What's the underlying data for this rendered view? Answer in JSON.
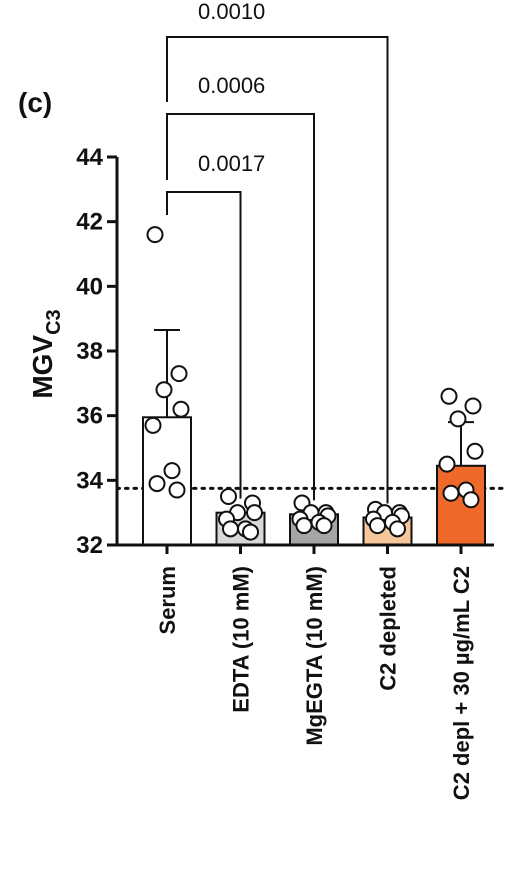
{
  "chart_data": {
    "type": "bar",
    "panel_label": "(c)",
    "ylabel": "MGV",
    "ylabel_subscript": "C3",
    "ylim": [
      32,
      44
    ],
    "yticks": [
      32,
      34,
      36,
      38,
      40,
      42,
      44
    ],
    "reference_line": 33.75,
    "categories": [
      "Serum",
      "EDTA (10 mM)",
      "MgEGTA (10 mM)",
      "C2 depleted",
      "C2 depl + 30 µg/mL C2"
    ],
    "values": [
      35.95,
      33.0,
      32.95,
      32.85,
      34.45
    ],
    "errors": [
      2.7,
      0,
      0,
      0,
      1.35
    ],
    "colors": [
      "#ffffff",
      "#d8d8d8",
      "#a6a6a6",
      "#f6c79a",
      "#ef6a2a"
    ],
    "points": [
      [
        41.6,
        37.3,
        36.8,
        36.2,
        35.7,
        34.3,
        33.9,
        33.7
      ],
      [
        33.5,
        33.3,
        33.0,
        33.0,
        32.8,
        32.5,
        32.5,
        32.4
      ],
      [
        33.3,
        33.0,
        33.0,
        32.9,
        32.8,
        32.7,
        32.6,
        32.6
      ],
      [
        33.1,
        33.0,
        33.0,
        32.9,
        32.8,
        32.7,
        32.6,
        32.5
      ],
      [
        36.6,
        36.3,
        35.9,
        34.9,
        34.5,
        33.7,
        33.6,
        33.4
      ]
    ],
    "comparisons": [
      {
        "from": 0,
        "to": 1,
        "p": "0.0017"
      },
      {
        "from": 0,
        "to": 2,
        "p": "0.0006"
      },
      {
        "from": 0,
        "to": 3,
        "p": "0.0010"
      }
    ]
  }
}
